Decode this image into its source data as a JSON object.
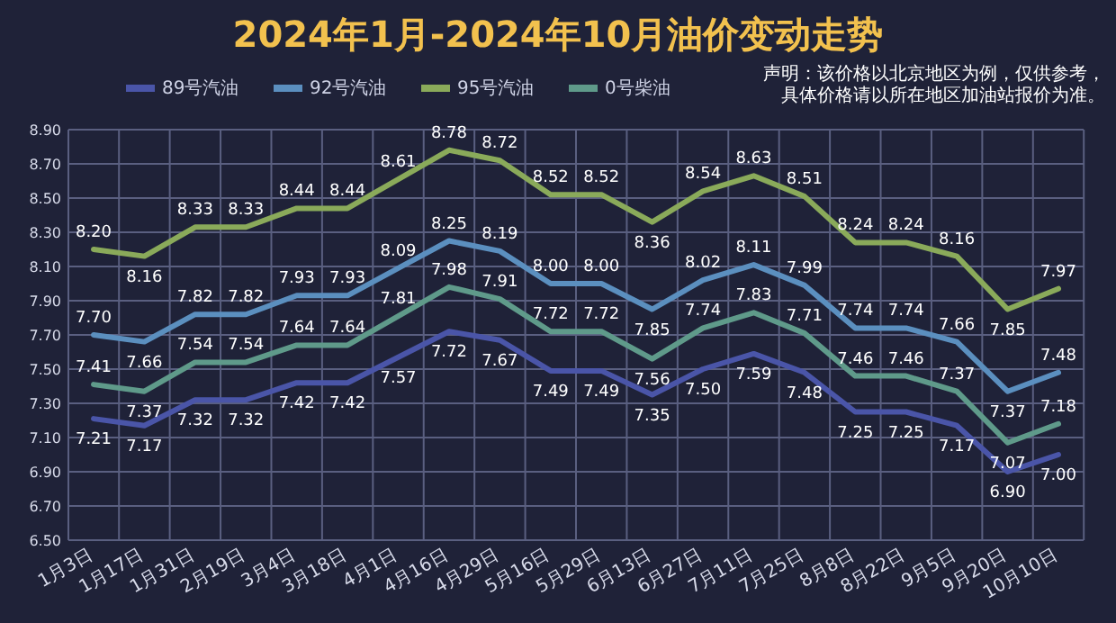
{
  "chart_data": {
    "type": "line",
    "title": "2024年1月-2024年10月油价变动走势",
    "annotations": [
      "声明：该价格以北京地区为例，仅供参考，具体价格请以所在地区加油站报价为准。"
    ],
    "categories": [
      "1月3日",
      "1月17日",
      "1月31日",
      "2月19日",
      "3月4日",
      "3月18日",
      "4月1日",
      "4月16日",
      "4月29日",
      "5月16日",
      "5月29日",
      "6月13日",
      "6月27日",
      "7月11日",
      "7月25日",
      "8月8日",
      "8月22日",
      "9月5日",
      "9月20日",
      "10月10日"
    ],
    "series": [
      {
        "name": "89号汽油",
        "color": "#4a55a8",
        "values": [
          7.21,
          7.17,
          7.32,
          7.32,
          7.42,
          7.42,
          7.57,
          7.72,
          7.67,
          7.49,
          7.49,
          7.35,
          7.5,
          7.59,
          7.48,
          7.25,
          7.25,
          7.17,
          6.9,
          7.0
        ],
        "value_labels": [
          "7.21",
          "7.17",
          "7.32",
          "7.32",
          "7.42",
          "7.42",
          "7.57",
          "7.72",
          "7.67",
          "7.49",
          "7.49",
          "7.35",
          "7.50",
          "7.59",
          "7.48",
          "7.25",
          "7.25",
          "7.17",
          "6.90",
          "7.00"
        ]
      },
      {
        "name": "92号汽油",
        "color": "#5b8fbf",
        "values": [
          7.7,
          7.66,
          7.82,
          7.82,
          7.93,
          7.93,
          8.09,
          8.25,
          8.19,
          8.0,
          8.0,
          7.85,
          8.02,
          8.11,
          7.99,
          7.74,
          7.74,
          7.66,
          7.37,
          7.48
        ],
        "value_labels": [
          "7.70",
          "7.66",
          "7.82",
          "7.82",
          "7.93",
          "7.93",
          "8.09",
          "8.25",
          "8.19",
          "8.00",
          "8.00",
          "7.85",
          "8.02",
          "8.11",
          "7.99",
          "7.74",
          "7.74",
          "7.66",
          "7.37",
          "7.48"
        ]
      },
      {
        "name": "95号汽油",
        "color": "#8aaa5a",
        "values": [
          8.2,
          8.16,
          8.33,
          8.33,
          8.44,
          8.44,
          8.61,
          8.78,
          8.72,
          8.52,
          8.52,
          8.36,
          8.54,
          8.63,
          8.51,
          8.24,
          8.24,
          8.16,
          7.85,
          7.97
        ],
        "value_labels": [
          "8.20",
          "8.16",
          "8.33",
          "8.33",
          "8.44",
          "8.44",
          "8.61",
          "8.78",
          "8.72",
          "8.52",
          "8.52",
          "8.36",
          "8.54",
          "8.63",
          "8.51",
          "8.24",
          "8.24",
          "8.16",
          "7.85",
          "7.97"
        ]
      },
      {
        "name": "0号柴油",
        "color": "#5f9a8a",
        "values": [
          7.41,
          7.37,
          7.54,
          7.54,
          7.64,
          7.64,
          7.81,
          7.98,
          7.91,
          7.72,
          7.72,
          7.56,
          7.74,
          7.83,
          7.71,
          7.46,
          7.46,
          7.37,
          7.07,
          7.18
        ],
        "value_labels": [
          "7.41",
          "7.37",
          "7.54",
          "7.54",
          "7.64",
          "7.64",
          "7.81",
          "7.98",
          "7.91",
          "7.72",
          "7.72",
          "7.56",
          "7.74",
          "7.83",
          "7.71",
          "7.46",
          "7.46",
          "7.37",
          "7.07",
          "7.18"
        ]
      }
    ],
    "ylim": [
      6.5,
      8.9
    ],
    "yticks": [
      "6.50",
      "6.70",
      "6.90",
      "7.10",
      "7.30",
      "7.50",
      "7.70",
      "7.90",
      "8.10",
      "8.30",
      "8.50",
      "8.70",
      "8.90"
    ],
    "grid": true,
    "legend": "top",
    "marker": "none",
    "line_style": "solid"
  }
}
